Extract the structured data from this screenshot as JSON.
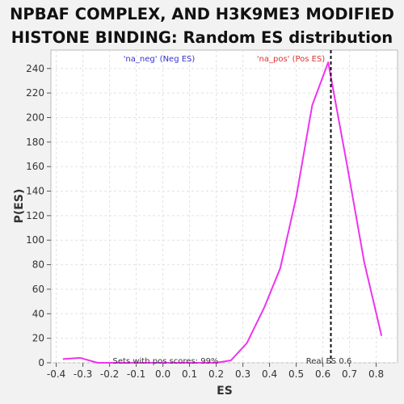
{
  "chart_data": {
    "type": "line",
    "title_line1": "NPBAF COMPLEX, AND H3K9ME3 MODIFIED",
    "title_line2": "HISTONE BINDING: Random ES distribution",
    "xlabel": "ES",
    "ylabel": "P(ES)",
    "xlim": [
      -0.42,
      0.88
    ],
    "ylim": [
      0,
      255
    ],
    "x_ticks": [
      -0.4,
      -0.3,
      -0.2,
      -0.1,
      0.0,
      0.1,
      0.2,
      0.3,
      0.4,
      0.5,
      0.6,
      0.7,
      0.8
    ],
    "x_tick_labels": [
      "-0.4",
      "-0.3",
      "-0.2",
      "-0.1",
      "0.0",
      "0.1",
      "0.2",
      "0.3",
      "0.4",
      "0.5",
      "0.6",
      "0.7",
      "0.8"
    ],
    "y_ticks": [
      0,
      20,
      40,
      60,
      80,
      100,
      120,
      140,
      160,
      180,
      200,
      220,
      240
    ],
    "grid": true,
    "series": [
      {
        "color": "#ee33ee",
        "x": [
          -0.375,
          -0.31,
          -0.245,
          -0.18,
          -0.115,
          -0.05,
          0.015,
          0.08,
          0.145,
          0.2,
          0.255,
          0.315,
          0.38,
          0.44,
          0.5,
          0.56,
          0.62,
          0.69,
          0.755,
          0.82
        ],
        "y": [
          3,
          4,
          0,
          0,
          0,
          0,
          0,
          0,
          0,
          0,
          2,
          16,
          45,
          77,
          135,
          210,
          245,
          162,
          82,
          22
        ]
      }
    ],
    "real_es": 0.63,
    "annotations": {
      "neg_label": "'na_neg' (Neg ES)",
      "pos_label": "'na_pos' (Pos ES)",
      "sets_text": "Sets with pos scores: 99%",
      "real_es_text": "Real ES 0.6"
    },
    "colors": {
      "neg": "#3333cc",
      "pos": "#dd3333",
      "line": "#ee33ee"
    }
  }
}
